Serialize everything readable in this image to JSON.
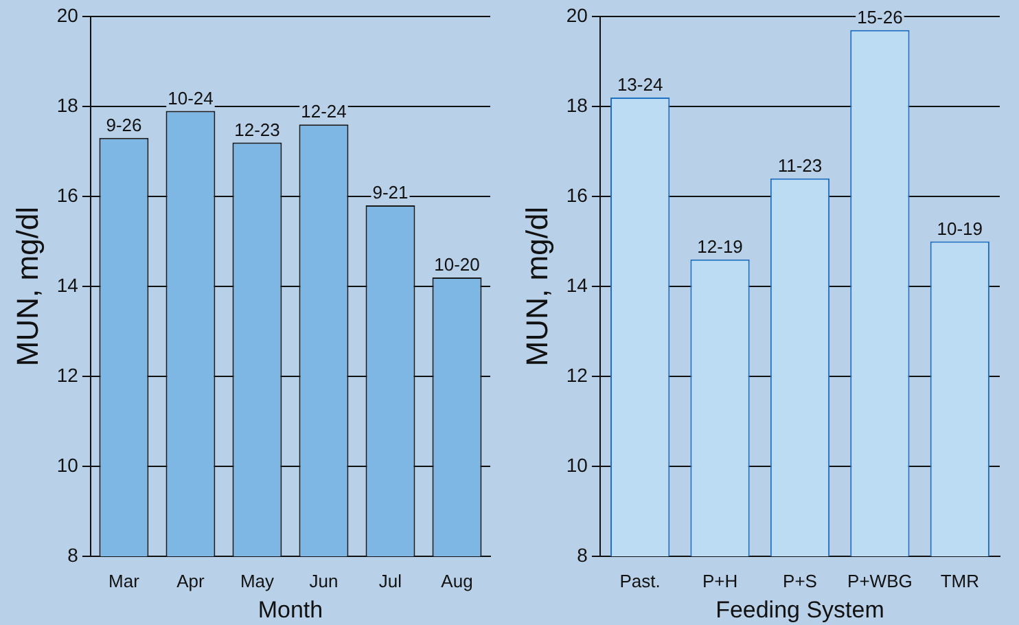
{
  "chart_data": [
    {
      "type": "bar",
      "xlabel": "Month",
      "ylabel": "MUN, mg/dl",
      "categories": [
        "Mar",
        "Apr",
        "May",
        "Jun",
        "Jul",
        "Aug"
      ],
      "series": [
        {
          "color": "#7eb6e4",
          "values": [
            17.3,
            17.9,
            17.2,
            17.6,
            15.8,
            14.2
          ],
          "value_labels": [
            "9-26",
            "10-24",
            "12-23",
            "12-24",
            "9-21",
            "10-20"
          ]
        }
      ],
      "ylim": [
        8,
        20
      ],
      "yticks": [
        8,
        10,
        12,
        14,
        16,
        18,
        20
      ],
      "grid": "y",
      "legend": false
    },
    {
      "type": "bar",
      "xlabel": "Feeding System",
      "ylabel": "MUN, mg/dl",
      "categories": [
        "Past.",
        "P+H",
        "P+S",
        "P+WBG",
        "TMR"
      ],
      "series": [
        {
          "color": "#bcdcf4",
          "values": [
            18.2,
            14.6,
            16.4,
            19.7,
            15.0
          ],
          "value_labels": [
            "13-24",
            "12-19",
            "11-23",
            "15-26",
            "10-19"
          ]
        }
      ],
      "ylim": [
        8,
        20
      ],
      "yticks": [
        8,
        10,
        12,
        14,
        16,
        18,
        20
      ],
      "grid": "y",
      "legend": false
    }
  ]
}
